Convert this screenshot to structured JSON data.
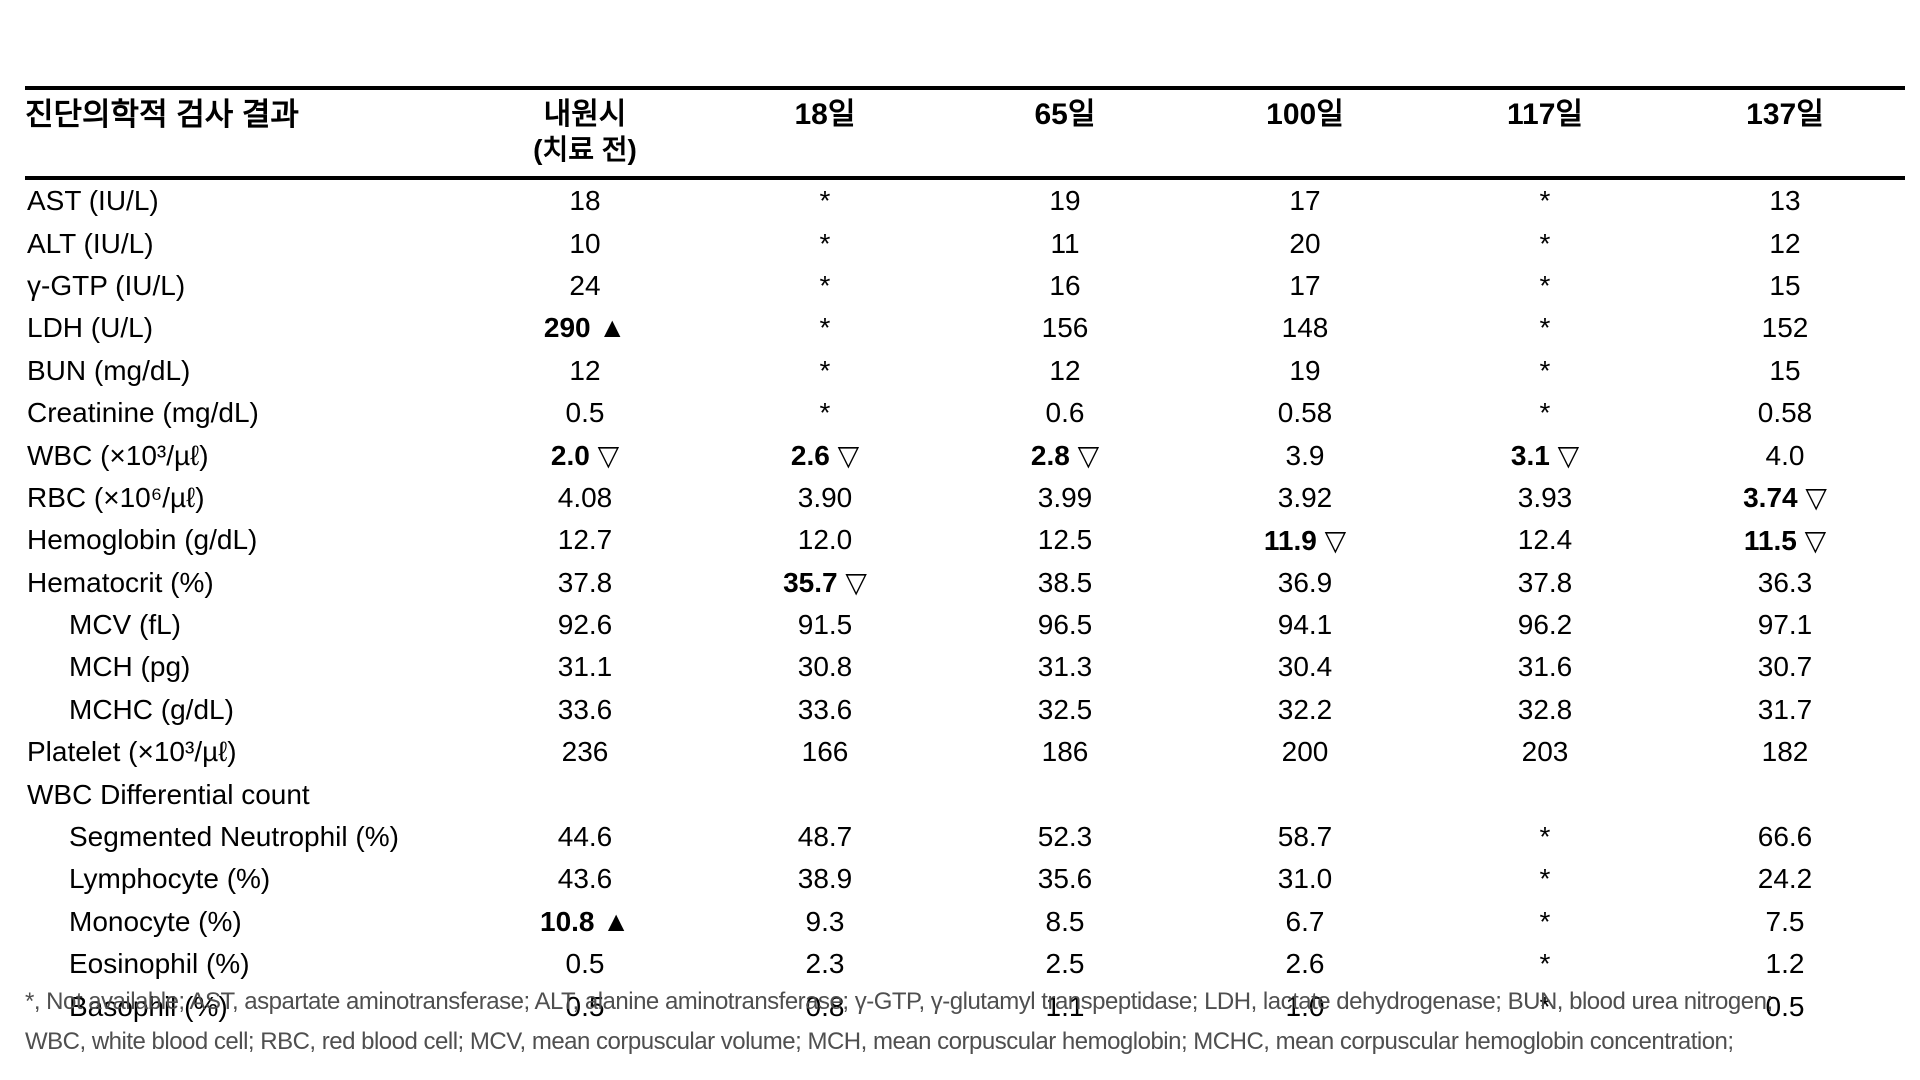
{
  "page": {
    "background": "#ffffff",
    "text_color": "#000000",
    "footnote_color": "#4f4f4f"
  },
  "table": {
    "title": "진단의학적 검사 결과",
    "columns": [
      {
        "label": "내원시",
        "sub": "(치료 전)"
      },
      {
        "label": "18일",
        "sub": ""
      },
      {
        "label": "65일",
        "sub": ""
      },
      {
        "label": "100일",
        "sub": ""
      },
      {
        "label": "117일",
        "sub": ""
      },
      {
        "label": "137일",
        "sub": ""
      }
    ],
    "symbols": {
      "high_marker": "▲",
      "low_marker": "▽",
      "not_available": "*"
    },
    "rows": [
      {
        "label": "AST (IU/L)",
        "indent": 0,
        "section": false,
        "values": [
          "18",
          "*",
          "19",
          "17",
          "*",
          "13"
        ]
      },
      {
        "label": "ALT (IU/L)",
        "indent": 0,
        "section": false,
        "values": [
          "10",
          "*",
          "11",
          "20",
          "*",
          "12"
        ]
      },
      {
        "label": "γ-GTP (IU/L)",
        "indent": 0,
        "section": false,
        "values": [
          "24",
          "*",
          "16",
          "17",
          "*",
          "15"
        ]
      },
      {
        "label": "LDH (U/L)",
        "indent": 0,
        "section": false,
        "values": [
          "290 ▲",
          "*",
          "156",
          "148",
          "*",
          "152"
        ]
      },
      {
        "label": "BUN (mg/dL)",
        "indent": 0,
        "section": false,
        "values": [
          "12",
          "*",
          "12",
          "19",
          "*",
          "15"
        ]
      },
      {
        "label": "Creatinine (mg/dL)",
        "indent": 0,
        "section": false,
        "values": [
          "0.5",
          "*",
          "0.6",
          "0.58",
          "*",
          "0.58"
        ]
      },
      {
        "label": "WBC (×10³/µℓ)",
        "indent": 0,
        "section": false,
        "values": [
          "2.0 ▽",
          "2.6 ▽",
          "2.8 ▽",
          "3.9",
          "3.1 ▽",
          "4.0"
        ]
      },
      {
        "label": "RBC (×10⁶/µℓ)",
        "indent": 0,
        "section": false,
        "values": [
          "4.08",
          "3.90",
          "3.99",
          "3.92",
          "3.93",
          "3.74 ▽"
        ]
      },
      {
        "label": "Hemoglobin (g/dL)",
        "indent": 0,
        "section": false,
        "values": [
          "12.7",
          "12.0",
          "12.5",
          "11.9 ▽",
          "12.4",
          "11.5 ▽"
        ]
      },
      {
        "label": "Hematocrit (%)",
        "indent": 0,
        "section": false,
        "values": [
          "37.8",
          "35.7 ▽",
          "38.5",
          "36.9",
          "37.8",
          "36.3"
        ]
      },
      {
        "label": "MCV (fL)",
        "indent": 1,
        "section": false,
        "values": [
          "92.6",
          "91.5",
          "96.5",
          "94.1",
          "96.2",
          "97.1"
        ]
      },
      {
        "label": "MCH (pg)",
        "indent": 1,
        "section": false,
        "values": [
          "31.1",
          "30.8",
          "31.3",
          "30.4",
          "31.6",
          "30.7"
        ]
      },
      {
        "label": "MCHC (g/dL)",
        "indent": 1,
        "section": false,
        "values": [
          "33.6",
          "33.6",
          "32.5",
          "32.2",
          "32.8",
          "31.7"
        ]
      },
      {
        "label": "Platelet (×10³/µℓ)",
        "indent": 0,
        "section": false,
        "values": [
          "236",
          "166",
          "186",
          "200",
          "203",
          "182"
        ]
      },
      {
        "label": "WBC Differential count",
        "indent": 0,
        "section": true,
        "values": [
          "",
          "",
          "",
          "",
          "",
          ""
        ]
      },
      {
        "label": "Segmented Neutrophil (%)",
        "indent": 1,
        "section": false,
        "values": [
          "44.6",
          "48.7",
          "52.3",
          "58.7",
          "*",
          "66.6"
        ]
      },
      {
        "label": "Lymphocyte (%)",
        "indent": 1,
        "section": false,
        "values": [
          "43.6",
          "38.9",
          "35.6",
          "31.0",
          "*",
          "24.2"
        ]
      },
      {
        "label": "Monocyte (%)",
        "indent": 1,
        "section": false,
        "values": [
          "10.8 ▲",
          "9.3",
          "8.5",
          "6.7",
          "*",
          "7.5"
        ]
      },
      {
        "label": "Eosinophil (%)",
        "indent": 1,
        "section": false,
        "values": [
          "0.5",
          "2.3",
          "2.5",
          "2.6",
          "*",
          "1.2"
        ]
      },
      {
        "label": "Basophil (%)",
        "indent": 1,
        "section": false,
        "values": [
          "0.5",
          "0.8",
          "1.1",
          "1.0",
          "*",
          "0.5"
        ]
      }
    ]
  },
  "footnote": {
    "line1": "*, Not available; AST, aspartate aminotransferase; ALT, alanine aminotransferase; γ-GTP, γ-glutamyl transpeptidase; LDH, lactate dehydrogenase; BUN, blood urea nitrogen;",
    "line2": "WBC, white blood cell; RBC, red blood cell; MCV, mean corpuscular volume; MCH, mean corpuscular hemoglobin; MCHC, mean corpuscular hemoglobin concentration;"
  }
}
